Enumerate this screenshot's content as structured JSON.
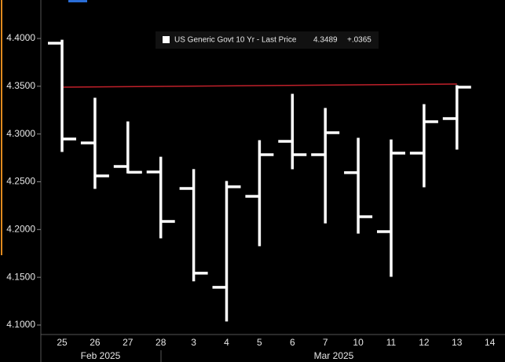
{
  "chart_data": {
    "type": "ohlc",
    "categories": [
      "25",
      "26",
      "27",
      "28",
      "3",
      "4",
      "5",
      "6",
      "7",
      "10",
      "11",
      "12",
      "13",
      "14"
    ],
    "month_labels": [
      "Feb 2025",
      "Mar 2025"
    ],
    "series": [
      {
        "name": "US Generic Govt 10 Yr - Last Price",
        "color": "#ffffff",
        "last_price": 4.3489,
        "change": {
          "value": 0.0365,
          "label": "+.0365"
        },
        "open": [
          4.3951,
          4.2907,
          4.266,
          4.2603,
          4.243,
          4.1395,
          4.2348,
          4.2923,
          4.2784,
          4.2595,
          4.1978,
          4.28,
          4.3162,
          null
        ],
        "high": [
          4.3975,
          4.3367,
          4.312,
          4.275,
          4.262,
          4.2496,
          4.2923,
          4.3408,
          4.326,
          4.2948,
          4.293,
          4.33,
          4.3499,
          null
        ],
        "low": [
          4.2825,
          4.2438,
          4.26,
          4.192,
          4.147,
          4.105,
          4.1838,
          4.2644,
          4.2077,
          4.197,
          4.1518,
          4.2455,
          4.2849,
          null
        ],
        "close": [
          4.2948,
          4.2562,
          4.26,
          4.2085,
          4.1543,
          4.2447,
          4.2784,
          4.2784,
          4.3014,
          4.2134,
          4.28,
          4.3129,
          4.349,
          null
        ]
      }
    ],
    "reference_line": {
      "color": "#c0202a",
      "values": [
        4.349,
        4.3523
      ]
    },
    "ylim": [
      4.0901,
      4.4403
    ],
    "yticks": [
      {
        "value": 4.1,
        "label": "4.1000"
      },
      {
        "value": 4.15,
        "label": "4.1500"
      },
      {
        "value": 4.2,
        "label": "4.2000"
      },
      {
        "value": 4.25,
        "label": "4.2500"
      },
      {
        "value": 4.3,
        "label": "4.3000"
      },
      {
        "value": 4.35,
        "label": "4.3500"
      },
      {
        "value": 4.4,
        "label": "4.4000"
      }
    ]
  }
}
